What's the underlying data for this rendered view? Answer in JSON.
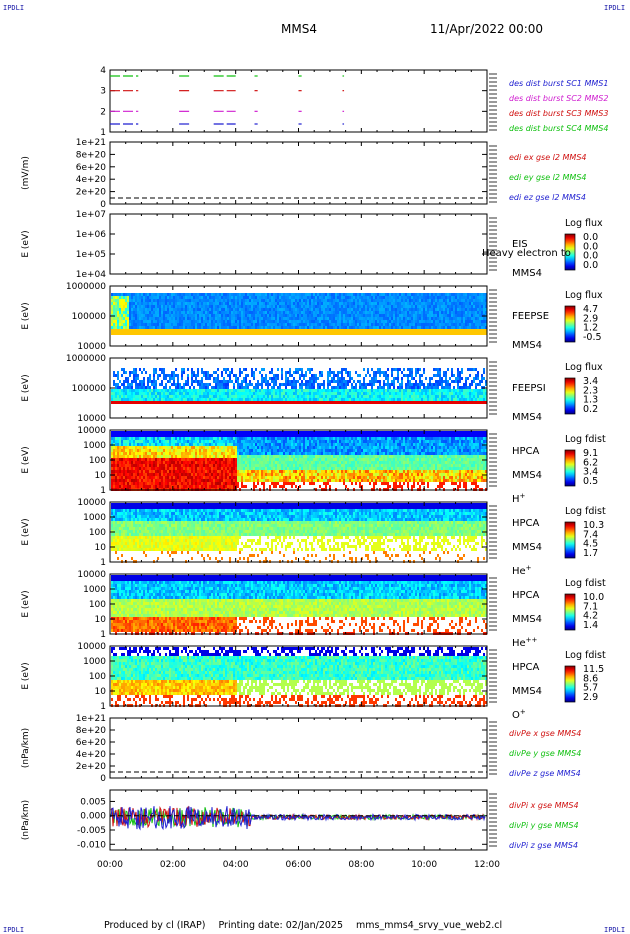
{
  "corners": {
    "tl": "IPDLI",
    "tr": "IPDLI",
    "bl": "IPDLI",
    "br": "IPDLI"
  },
  "header": {
    "spacecraft": "MMS4",
    "date": "11/Apr/2022 00:00"
  },
  "footer": {
    "producer": "Produced by cl (IRAP)",
    "printing": "Printing date: 02/Jan/2025",
    "file": "mms_mms4_srvy_vue_web2.cl"
  },
  "time_axis": {
    "ticks": [
      "00:00",
      "02:00",
      "04:00",
      "06:00",
      "08:00",
      "10:00",
      "12:00"
    ],
    "range_hours": [
      0,
      12
    ]
  },
  "colors": {
    "blue": "#1f1fd0",
    "magenta": "#d020d0",
    "red": "#d01010",
    "green": "#10c010"
  },
  "chart_data": [
    {
      "type": "line",
      "panel": "burst",
      "y_ticks": [
        "1",
        "2",
        "3",
        "4"
      ],
      "legend": [
        "des dist burst SC1 MMS1",
        "des dist burst SC2 MMS2",
        "des dist burst SC3 MMS3",
        "des dist burst SC4 MMS4"
      ],
      "legend_colors": [
        "#1f1fd0",
        "#d020d0",
        "#d01010",
        "#10c010"
      ],
      "intervals_hours": [
        [
          0.0,
          0.9
        ],
        [
          2.2,
          2.6
        ],
        [
          3.3,
          4.0
        ],
        [
          4.6,
          4.7
        ],
        [
          6.0,
          6.1
        ],
        [
          7.4,
          7.45
        ]
      ]
    },
    {
      "type": "line",
      "panel": "edi",
      "ylabel": "(mV/m)",
      "y_ticks": [
        "1e+21",
        "8e+20",
        "6e+20",
        "4e+20",
        "2e+20",
        "0"
      ],
      "legend": [
        "edi ex gse l2 MMS4",
        "edi ey gse l2 MMS4",
        "edi ez gse l2 MMS4"
      ],
      "legend_colors": [
        "#d01010",
        "#10c010",
        "#1f1fd0"
      ]
    },
    {
      "type": "heatmap",
      "panel": "eis",
      "ylabel": "E (eV)",
      "y_ticks": [
        "1e+07",
        "1e+06",
        "1e+05",
        "1e+04"
      ],
      "side": [
        "EIS",
        "MMS4"
      ],
      "overlay": "Heavy electron to",
      "cb_title": "Log flux",
      "cb_values": [
        "0.0",
        "0.0",
        "0.0",
        "0.0"
      ]
    },
    {
      "type": "heatmap",
      "panel": "feepse",
      "ylabel": "E (eV)",
      "y_ticks": [
        "1000000",
        "100000",
        "10000"
      ],
      "side": [
        "FEEPSE",
        "MMS4"
      ],
      "cb_title": "Log flux",
      "cb_values": [
        "4.7",
        "2.9",
        "1.2",
        "-0.5"
      ]
    },
    {
      "type": "heatmap",
      "panel": "feepsi",
      "ylabel": "E (eV)",
      "y_ticks": [
        "1000000",
        "100000",
        "10000"
      ],
      "side": [
        "FEEPSI",
        "MMS4"
      ],
      "cb_title": "Log flux",
      "cb_values": [
        "3.4",
        "2.3",
        "1.3",
        "0.2"
      ]
    },
    {
      "type": "heatmap",
      "panel": "hpca-h",
      "ylabel": "E (eV)",
      "y_ticks": [
        "10000",
        "1000",
        "100",
        "10",
        "1"
      ],
      "side": [
        "HPCA",
        "MMS4",
        "H+"
      ],
      "cb_title": "Log fdist",
      "cb_values": [
        "9.1",
        "6.2",
        "3.4",
        "0.5"
      ]
    },
    {
      "type": "heatmap",
      "panel": "hpca-he",
      "ylabel": "E (eV)",
      "y_ticks": [
        "10000",
        "1000",
        "100",
        "10",
        "1"
      ],
      "side": [
        "HPCA",
        "MMS4",
        "He+"
      ],
      "cb_title": "Log fdist",
      "cb_values": [
        "10.3",
        "7.4",
        "4.5",
        "1.7"
      ]
    },
    {
      "type": "heatmap",
      "panel": "hpca-hepp",
      "ylabel": "E (eV)",
      "y_ticks": [
        "10000",
        "1000",
        "100",
        "10",
        "1"
      ],
      "side": [
        "HPCA",
        "MMS4",
        "He++"
      ],
      "cb_title": "Log fdist",
      "cb_values": [
        "10.0",
        "7.1",
        "4.2",
        "1.4"
      ]
    },
    {
      "type": "heatmap",
      "panel": "hpca-o",
      "ylabel": "E (eV)",
      "y_ticks": [
        "10000",
        "1000",
        "100",
        "10",
        "1"
      ],
      "side": [
        "HPCA",
        "MMS4",
        "O+"
      ],
      "cb_title": "Log fdist",
      "cb_values": [
        "11.5",
        "8.6",
        "5.7",
        "2.9"
      ]
    },
    {
      "type": "line",
      "panel": "divpe",
      "ylabel": "(nPa/km)",
      "y_ticks": [
        "1e+21",
        "8e+20",
        "6e+20",
        "4e+20",
        "2e+20",
        "0"
      ],
      "legend": [
        "divPe x gse MMS4",
        "divPe y gse MMS4",
        "divPe z gse MMS4"
      ],
      "legend_colors": [
        "#d01010",
        "#10c010",
        "#1f1fd0"
      ]
    },
    {
      "type": "line",
      "panel": "divpi",
      "ylabel": "(nPa/km)",
      "y_ticks": [
        "0.005",
        "0.000",
        "-0.005",
        "-0.010"
      ],
      "ylim": [
        -0.012,
        0.009
      ],
      "legend": [
        "divPi x gse MMS4",
        "divPi y gse MMS4",
        "divPi z gse MMS4"
      ],
      "legend_colors": [
        "#d01010",
        "#10c010",
        "#1f1fd0"
      ]
    }
  ]
}
